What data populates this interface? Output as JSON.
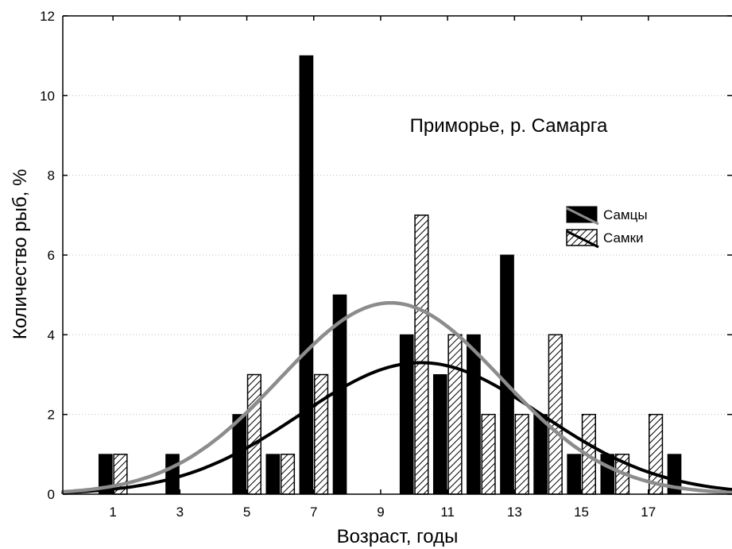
{
  "chart_data": {
    "type": "bar",
    "title": "Приморье, р. Самарга",
    "xlabel": "Возраст, годы",
    "ylabel": "Количество рыб, %",
    "x_tick_labels": [
      "1",
      "3",
      "5",
      "7",
      "9",
      "11",
      "13",
      "15",
      "17"
    ],
    "x_tick_values": [
      1,
      3,
      5,
      7,
      9,
      11,
      13,
      15,
      17
    ],
    "xlim": [
      -0.5,
      19.5
    ],
    "y_tick_labels": [
      "0",
      "2",
      "4",
      "6",
      "8",
      "10",
      "12"
    ],
    "ylim": [
      0,
      12
    ],
    "grid": "horizontal dotted",
    "legend_position": "right",
    "series": [
      {
        "name": "Самцы",
        "fill": "solid",
        "color": "#000000",
        "x": [
          1,
          3,
          5,
          6,
          7,
          8,
          10,
          11,
          12,
          13,
          14,
          15,
          16,
          18
        ],
        "values": [
          1,
          1,
          2,
          1,
          11,
          5,
          4,
          3,
          4,
          6,
          2,
          1,
          1,
          1
        ],
        "curve": {
          "type": "normal",
          "mean": 10.2,
          "sd": 3.6,
          "peak": 3.3,
          "color": "#000000"
        }
      },
      {
        "name": "Самки",
        "fill": "hatched",
        "color": "#000000",
        "x": [
          1,
          5,
          6,
          7,
          10,
          11,
          12,
          13,
          14,
          15,
          16,
          17
        ],
        "values": [
          1,
          3,
          1,
          3,
          7,
          4,
          2,
          2,
          4,
          2,
          1,
          2
        ],
        "curve": {
          "type": "normal",
          "mean": 9.3,
          "sd": 3.3,
          "peak": 4.8,
          "color": "#8c8c8c"
        }
      }
    ]
  }
}
